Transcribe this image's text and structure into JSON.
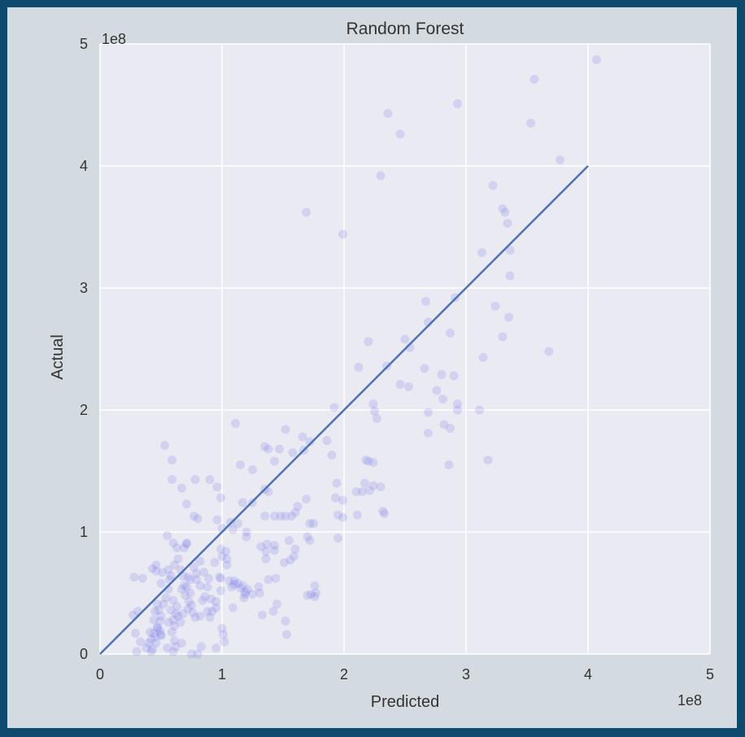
{
  "colors": {
    "page_border": "#0d4a6e",
    "figure_bg": "#d3dbe0",
    "plot_bg": "#eaeaf2",
    "grid": "#ffffff",
    "points": "#6a6ae8",
    "fit_line": "#4c72b0",
    "text": "#333333"
  },
  "chart_data": {
    "type": "scatter",
    "title": "Random Forest",
    "xlabel": "Predicted",
    "ylabel": "Actual",
    "x_offset_label": "1e8",
    "y_offset_label": "1e8",
    "xlim": [
      0,
      5
    ],
    "ylim": [
      0,
      5
    ],
    "xticks": [
      "0",
      "1",
      "2",
      "3",
      "4",
      "5"
    ],
    "yticks": [
      "0",
      "1",
      "2",
      "3",
      "4",
      "5"
    ],
    "grid": true,
    "reference_line": {
      "x": [
        0,
        4
      ],
      "y": [
        0,
        4
      ]
    },
    "points": [
      [
        4.07,
        4.87
      ],
      [
        3.56,
        4.71
      ],
      [
        3.53,
        4.35
      ],
      [
        2.93,
        4.51
      ],
      [
        2.36,
        4.43
      ],
      [
        2.46,
        4.26
      ],
      [
        3.77,
        4.05
      ],
      [
        2.3,
        3.92
      ],
      [
        3.22,
        3.84
      ],
      [
        3.3,
        3.65
      ],
      [
        3.32,
        3.62
      ],
      [
        3.34,
        3.53
      ],
      [
        3.36,
        3.31
      ],
      [
        3.13,
        3.29
      ],
      [
        3.36,
        3.1
      ],
      [
        1.69,
        3.62
      ],
      [
        1.99,
        3.44
      ],
      [
        2.67,
        2.89
      ],
      [
        2.91,
        2.92
      ],
      [
        3.24,
        2.85
      ],
      [
        3.35,
        2.76
      ],
      [
        3.3,
        2.6
      ],
      [
        3.68,
        2.48
      ],
      [
        3.14,
        2.43
      ],
      [
        2.69,
        2.72
      ],
      [
        2.87,
        2.63
      ],
      [
        2.5,
        2.58
      ],
      [
        2.54,
        2.51
      ],
      [
        2.2,
        2.56
      ],
      [
        2.35,
        2.36
      ],
      [
        2.12,
        2.35
      ],
      [
        2.66,
        2.34
      ],
      [
        2.8,
        2.29
      ],
      [
        2.9,
        2.28
      ],
      [
        2.46,
        2.21
      ],
      [
        2.53,
        2.19
      ],
      [
        2.76,
        2.16
      ],
      [
        2.81,
        2.09
      ],
      [
        2.93,
        2.05
      ],
      [
        2.93,
        2.0
      ],
      [
        3.11,
        2.0
      ],
      [
        2.69,
        1.98
      ],
      [
        2.82,
        1.88
      ],
      [
        2.87,
        1.85
      ],
      [
        2.69,
        1.81
      ],
      [
        2.24,
        2.05
      ],
      [
        2.25,
        1.99
      ],
      [
        2.27,
        1.93
      ],
      [
        1.92,
        2.02
      ],
      [
        3.18,
        1.59
      ],
      [
        2.86,
        1.55
      ],
      [
        1.66,
        1.78
      ],
      [
        1.86,
        1.75
      ],
      [
        1.9,
        1.63
      ],
      [
        1.58,
        1.65
      ],
      [
        1.72,
        1.74
      ],
      [
        1.67,
        1.67
      ],
      [
        1.38,
        1.68
      ],
      [
        1.35,
        1.7
      ],
      [
        1.47,
        1.68
      ],
      [
        1.52,
        1.84
      ],
      [
        1.11,
        1.89
      ],
      [
        2.18,
        1.59
      ],
      [
        2.2,
        1.58
      ],
      [
        2.24,
        1.57
      ],
      [
        2.17,
        1.4
      ],
      [
        2.24,
        1.38
      ],
      [
        2.3,
        1.37
      ],
      [
        2.21,
        1.34
      ],
      [
        2.15,
        1.33
      ],
      [
        2.1,
        1.33
      ],
      [
        2.32,
        1.17
      ],
      [
        2.33,
        1.15
      ],
      [
        2.11,
        1.14
      ],
      [
        1.94,
        1.4
      ],
      [
        1.93,
        1.28
      ],
      [
        1.99,
        1.26
      ],
      [
        1.99,
        1.12
      ],
      [
        1.95,
        1.14
      ],
      [
        1.95,
        0.95
      ],
      [
        1.69,
        1.27
      ],
      [
        1.62,
        1.21
      ],
      [
        1.6,
        1.16
      ],
      [
        1.57,
        1.13
      ],
      [
        1.52,
        1.13
      ],
      [
        1.48,
        1.13
      ],
      [
        1.43,
        1.13
      ],
      [
        1.35,
        1.13
      ],
      [
        1.72,
        1.07
      ],
      [
        1.75,
        1.07
      ],
      [
        1.7,
        0.96
      ],
      [
        1.72,
        0.93
      ],
      [
        1.55,
        0.93
      ],
      [
        1.43,
        0.89
      ],
      [
        1.37,
        0.9
      ],
      [
        1.43,
        0.85
      ],
      [
        1.36,
        0.84
      ],
      [
        1.6,
        0.86
      ],
      [
        1.59,
        0.8
      ],
      [
        1.56,
        0.77
      ],
      [
        1.51,
        0.75
      ],
      [
        1.36,
        0.78
      ],
      [
        1.32,
        0.88
      ],
      [
        1.25,
        1.24
      ],
      [
        1.17,
        1.24
      ],
      [
        1.2,
        1.0
      ],
      [
        1.2,
        0.96
      ],
      [
        1.09,
        1.02
      ],
      [
        1.13,
        1.07
      ],
      [
        1.25,
        1.51
      ],
      [
        1.15,
        1.55
      ],
      [
        1.35,
        1.35
      ],
      [
        1.38,
        1.33
      ],
      [
        1.43,
        1.58
      ],
      [
        0.53,
        1.71
      ],
      [
        0.78,
        1.43
      ],
      [
        0.9,
        1.43
      ],
      [
        0.96,
        1.37
      ],
      [
        0.59,
        1.59
      ],
      [
        0.59,
        1.43
      ],
      [
        0.67,
        1.36
      ],
      [
        0.71,
        1.23
      ],
      [
        0.8,
        1.11
      ],
      [
        0.77,
        1.13
      ],
      [
        0.99,
        1.28
      ],
      [
        0.96,
        1.1
      ],
      [
        1.07,
        1.08
      ],
      [
        1.0,
        1.03
      ],
      [
        0.55,
        0.97
      ],
      [
        0.71,
        0.91
      ],
      [
        0.71,
        0.9
      ],
      [
        0.69,
        0.87
      ],
      [
        0.6,
        0.91
      ],
      [
        0.63,
        0.87
      ],
      [
        0.99,
        0.86
      ],
      [
        1.03,
        0.84
      ],
      [
        1.0,
        0.8
      ],
      [
        1.04,
        0.78
      ],
      [
        1.04,
        0.73
      ],
      [
        0.94,
        0.75
      ],
      [
        0.99,
        0.62
      ],
      [
        1.1,
        0.6
      ],
      [
        1.13,
        0.58
      ],
      [
        1.17,
        0.56
      ],
      [
        1.21,
        0.53
      ],
      [
        1.19,
        0.51
      ],
      [
        1.08,
        0.55
      ],
      [
        1.31,
        0.5
      ],
      [
        1.44,
        0.62
      ],
      [
        1.38,
        0.61
      ],
      [
        1.3,
        0.55
      ],
      [
        1.18,
        0.46
      ],
      [
        1.45,
        0.41
      ],
      [
        1.33,
        0.32
      ],
      [
        1.42,
        0.35
      ],
      [
        1.52,
        0.27
      ],
      [
        1.53,
        0.16
      ],
      [
        1.7,
        0.48
      ],
      [
        1.73,
        0.49
      ],
      [
        1.76,
        0.47
      ],
      [
        1.76,
        0.56
      ],
      [
        1.77,
        0.5
      ],
      [
        1.09,
        0.38
      ],
      [
        1.0,
        0.21
      ],
      [
        1.02,
        0.1
      ],
      [
        1.01,
        0.16
      ],
      [
        0.95,
        0.05
      ],
      [
        0.83,
        0.06
      ],
      [
        0.9,
        0.3
      ],
      [
        0.91,
        0.45
      ],
      [
        0.95,
        0.43
      ],
      [
        0.95,
        0.38
      ],
      [
        0.92,
        0.35
      ],
      [
        0.88,
        0.35
      ],
      [
        0.84,
        0.44
      ],
      [
        0.82,
        0.56
      ],
      [
        0.79,
        0.61
      ],
      [
        0.79,
        0.66
      ],
      [
        0.82,
        0.76
      ],
      [
        0.77,
        0.71
      ],
      [
        0.85,
        0.67
      ],
      [
        0.89,
        0.62
      ],
      [
        0.88,
        0.55
      ],
      [
        0.56,
        0.69
      ],
      [
        0.61,
        0.73
      ],
      [
        0.64,
        0.78
      ],
      [
        0.66,
        0.69
      ],
      [
        0.68,
        0.64
      ],
      [
        0.72,
        0.63
      ],
      [
        0.74,
        0.61
      ],
      [
        0.69,
        0.56
      ],
      [
        0.74,
        0.5
      ],
      [
        0.7,
        0.48
      ],
      [
        0.73,
        0.43
      ],
      [
        0.75,
        0.4
      ],
      [
        0.72,
        0.37
      ],
      [
        0.76,
        0.34
      ],
      [
        0.68,
        0.33
      ],
      [
        0.64,
        0.31
      ],
      [
        0.66,
        0.26
      ],
      [
        0.61,
        0.23
      ],
      [
        0.59,
        0.18
      ],
      [
        0.61,
        0.11
      ],
      [
        0.55,
        0.05
      ],
      [
        0.6,
        0.02
      ],
      [
        0.5,
        0.16
      ],
      [
        0.47,
        0.21
      ],
      [
        0.44,
        0.17
      ],
      [
        0.45,
        0.14
      ],
      [
        0.46,
        0.09
      ],
      [
        0.43,
        0.04
      ],
      [
        0.4,
        0.09
      ],
      [
        0.41,
        0.18
      ],
      [
        0.47,
        0.22
      ],
      [
        0.49,
        0.27
      ],
      [
        0.44,
        0.28
      ],
      [
        0.45,
        0.35
      ],
      [
        0.5,
        0.31
      ],
      [
        0.52,
        0.41
      ],
      [
        0.48,
        0.36
      ],
      [
        0.47,
        0.41
      ],
      [
        0.54,
        0.46
      ],
      [
        0.56,
        0.53
      ],
      [
        0.5,
        0.58
      ],
      [
        0.57,
        0.61
      ],
      [
        0.58,
        0.64
      ],
      [
        0.51,
        0.67
      ],
      [
        0.46,
        0.68
      ],
      [
        0.43,
        0.7
      ],
      [
        0.46,
        0.73
      ],
      [
        0.35,
        0.62
      ],
      [
        0.28,
        0.63
      ],
      [
        0.29,
        0.17
      ],
      [
        0.33,
        0.1
      ],
      [
        0.3,
        0.02
      ],
      [
        0.38,
        0.05
      ],
      [
        0.42,
        0.02
      ],
      [
        0.42,
        0.12
      ],
      [
        0.5,
        0.15
      ],
      [
        0.49,
        0.19
      ],
      [
        0.56,
        0.26
      ],
      [
        0.6,
        0.28
      ],
      [
        0.62,
        0.33
      ],
      [
        0.63,
        0.39
      ],
      [
        0.6,
        0.44
      ],
      [
        0.58,
        0.36
      ],
      [
        0.67,
        0.53
      ],
      [
        0.71,
        0.55
      ],
      [
        0.78,
        0.3
      ],
      [
        0.82,
        0.31
      ],
      [
        0.86,
        0.47
      ],
      [
        0.98,
        0.63
      ],
      [
        1.1,
        0.57
      ],
      [
        1.15,
        0.54
      ],
      [
        1.19,
        0.49
      ],
      [
        1.25,
        0.49
      ],
      [
        0.99,
        0.52
      ],
      [
        1.06,
        0.6
      ],
      [
        0.27,
        0.32
      ],
      [
        0.31,
        0.35
      ],
      [
        0.75,
        0.0
      ],
      [
        0.8,
        0.0
      ],
      [
        0.62,
        0.06
      ],
      [
        0.67,
        0.09
      ]
    ]
  }
}
